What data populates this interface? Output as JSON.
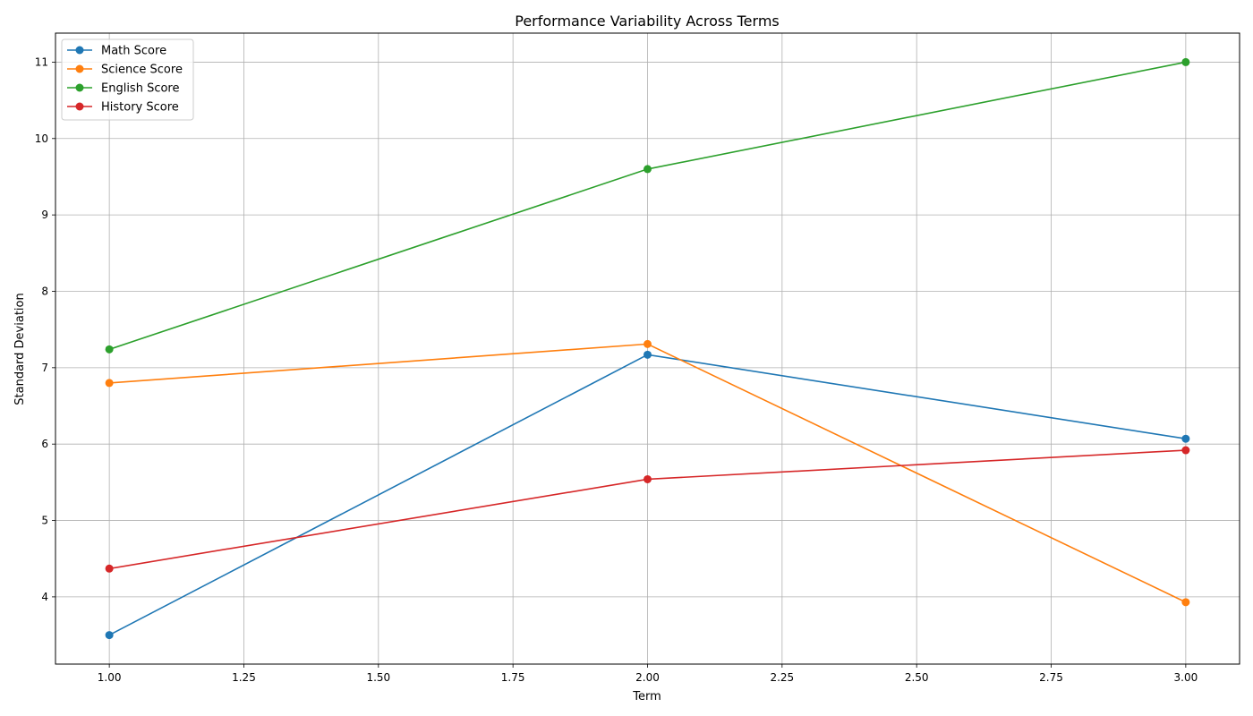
{
  "chart_data": {
    "type": "line",
    "title": "Performance Variability Across Terms",
    "xlabel": "Term",
    "ylabel": "Standard Deviation",
    "x": [
      1,
      2,
      3
    ],
    "xlim": [
      0.9,
      3.1
    ],
    "ylim": [
      3.12,
      11.38
    ],
    "xticks": [
      1.0,
      1.25,
      1.5,
      1.75,
      2.0,
      2.25,
      2.5,
      2.75,
      3.0
    ],
    "xtick_labels": [
      "1.00",
      "1.25",
      "1.50",
      "1.75",
      "2.00",
      "2.25",
      "2.50",
      "2.75",
      "3.00"
    ],
    "yticks": [
      4,
      5,
      6,
      7,
      8,
      9,
      10,
      11
    ],
    "ytick_labels": [
      "4",
      "5",
      "6",
      "7",
      "8",
      "9",
      "10",
      "11"
    ],
    "grid": true,
    "legend_position": "top-left",
    "series": [
      {
        "name": "Math Score",
        "color": "#1f77b4",
        "values": [
          3.5,
          7.17,
          6.07
        ]
      },
      {
        "name": "Science Score",
        "color": "#ff7f0e",
        "values": [
          6.8,
          7.31,
          3.93
        ]
      },
      {
        "name": "English Score",
        "color": "#2ca02c",
        "values": [
          7.24,
          9.6,
          11.0
        ]
      },
      {
        "name": "History Score",
        "color": "#d62728",
        "values": [
          4.37,
          5.54,
          5.92
        ]
      }
    ]
  }
}
